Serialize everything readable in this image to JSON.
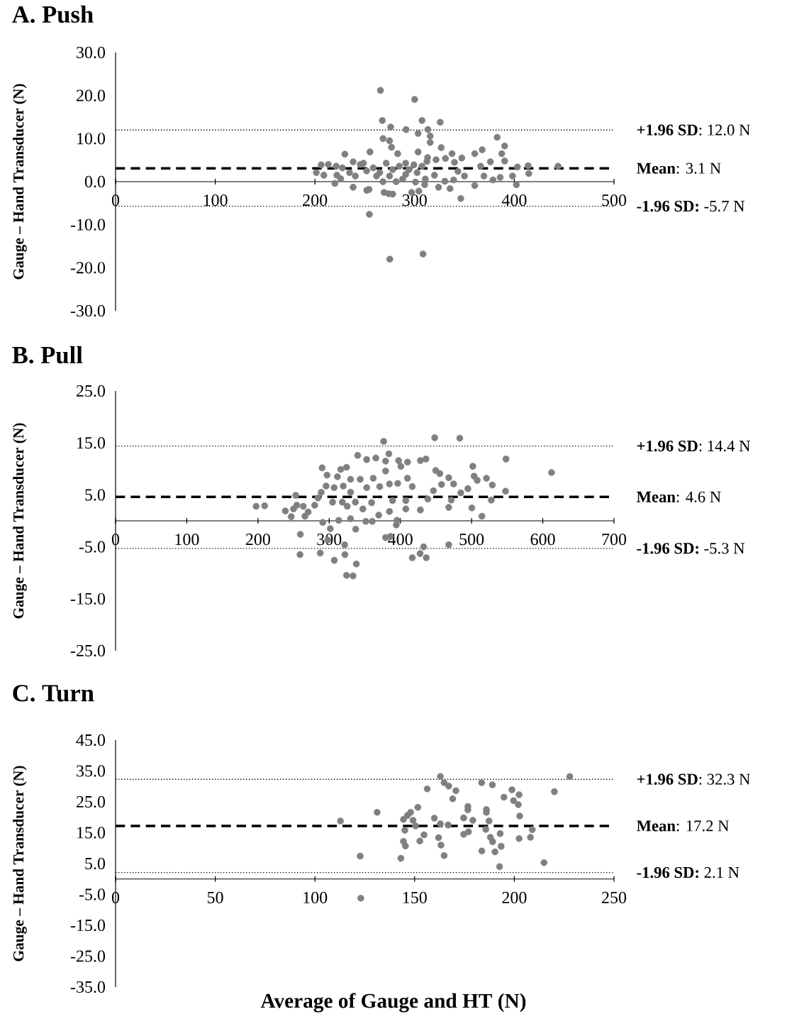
{
  "chart_data": [
    {
      "type": "scatter",
      "title": "**A. Push**",
      "ylabel": "**Gauge – Hand Transducer  (N)**",
      "color": "#808080",
      "marker": "circle",
      "x": [
        265.7,
        300,
        267.6,
        307.4,
        325.7,
        276,
        291.5,
        313.3,
        303.5,
        315.6,
        315.6,
        268.3,
        274.8,
        382.8,
        276.8,
        390.3,
        326.7,
        367.8,
        360.3,
        283,
        303.5,
        230,
        255.2,
        337.5,
        387.4,
        330.9,
        347.3,
        313,
        321.5,
        390.3,
        238.3,
        245.5,
        206.3,
        213.5,
        221.3,
        227.5,
        403.1,
        413.9,
        443.9,
        376,
        366.2,
        340,
        201.4,
        208.9,
        222,
        225.8,
        220,
        238.3,
        234.7,
        240.5,
        254.3,
        252,
        269.3,
        278,
        274,
        297,
        304.2,
        310.1,
        324,
        335.5,
        319.9,
        330.3,
        360.3,
        402.1,
        398.2,
        414.5,
        385.8,
        378.6,
        369.5,
        350,
        343.4,
        339.1,
        346.3,
        254.6,
        275.1,
        308.4,
        258.5,
        265,
        271.5,
        278,
        284.6,
        291,
        294.4,
        299.3,
        302.5,
        288,
        281.5,
        300.9,
        261.8,
        251.9,
        268.3,
        274.8,
        310.7,
        307.4,
        291.1,
        248.7,
        312.3
      ],
      "values": [
        21.2,
        19.1,
        14.2,
        14.2,
        13.8,
        12.7,
        12.1,
        12.1,
        11.2,
        10.6,
        9.1,
        10.0,
        9.5,
        10.3,
        8.0,
        8.3,
        7.9,
        7.4,
        6.5,
        6.5,
        6.9,
        6.4,
        6.9,
        6.5,
        6.5,
        5.4,
        5.5,
        5.6,
        5.1,
        4.8,
        4.6,
        4.0,
        3.9,
        4.0,
        3.6,
        3.2,
        3.4,
        3.7,
        3.6,
        4.6,
        3.6,
        4.5,
        2.1,
        1.5,
        1.5,
        0.7,
        -0.4,
        -1.3,
        2.1,
        1.3,
        -1.8,
        -2.0,
        -2.5,
        -2.9,
        -2.8,
        -2.5,
        -2.2,
        -0.7,
        -1.3,
        -1.6,
        1.5,
        0.1,
        -0.9,
        -0.7,
        1.3,
        1.9,
        1.0,
        0.4,
        1.3,
        1.3,
        2.4,
        0.4,
        -3.9,
        -7.6,
        -18.0,
        -16.8,
        3.2,
        2.1,
        4.3,
        2.8,
        3.6,
        4.3,
        2.8,
        3.9,
        2.1,
        0.6,
        0,
        -0.1,
        1.3,
        2.5,
        0,
        1.3,
        0.6,
        3.6,
        1.7,
        4.3,
        4.7
      ],
      "xlim": [
        0,
        500
      ],
      "xticks": [
        0,
        100,
        200,
        300,
        400,
        500
      ],
      "ylim": [
        -30,
        30
      ],
      "yticks": [
        {
          "value": 30,
          "label": "30.0"
        },
        {
          "value": 20,
          "label": "20.0"
        },
        {
          "value": 10,
          "label": "10.0"
        },
        {
          "value": 0,
          "label": "0.0"
        },
        {
          "value": -10,
          "label": "-10.0"
        },
        {
          "value": -20,
          "label": "-20.0"
        },
        {
          "value": -30,
          "label": "-30.0"
        }
      ],
      "ref_lines": [
        {
          "axis": "y",
          "value": 12.0,
          "label": "**+1.96 SD**: 12.0 N",
          "line_style": "dotted",
          "color": "#000000"
        },
        {
          "axis": "y",
          "value": 3.1,
          "label": "**Mean**: 3.1 N",
          "line_style": "dashed",
          "color": "#000000"
        },
        {
          "axis": "y",
          "value": -5.7,
          "label": "**-1.96 SD:** -5.7 N",
          "line_style": "dotted",
          "color": "#000000"
        }
      ]
    },
    {
      "type": "scatter",
      "title": "**B. Pull**",
      "ylabel": "**Gauge – Hand Transducer  (N)**",
      "color": "#808080",
      "marker": "circle",
      "x": [
        448.2,
        483.4,
        376.5,
        548.3,
        612.3,
        340,
        383.8,
        352.7,
        365.5,
        379.2,
        397.5,
        410,
        428.1,
        435.9,
        400.7,
        501.7,
        290.1,
        324.4,
        316.2,
        449.6,
        455.4,
        379.2,
        297,
        311.6,
        503.5,
        508,
        520.9,
        467.9,
        409.9,
        330,
        343.6,
        361.9,
        474.7,
        529.1,
        457.8,
        416.7,
        295.6,
        319.8,
        494.8,
        384.7,
        396.2,
        352.7,
        371,
        547.7,
        484.8,
        446.4,
        288.8,
        307,
        330,
        253.1,
        284.2,
        527.7,
        471.5,
        438.6,
        407.6,
        389,
        304.8,
        318.5,
        336.8,
        359.6,
        197.4,
        209.3,
        238.5,
        254.5,
        263.6,
        250,
        279.6,
        270.5,
        246.7,
        266,
        467.9,
        500.3,
        514.5,
        347.3,
        369.6,
        384.7,
        407.6,
        428.1,
        325.3,
        313.4,
        330,
        351.4,
        360.5,
        291,
        301.6,
        337.2,
        395.2,
        394.3,
        259.5,
        298,
        379.2,
        386,
        432.7,
        467.9,
        321.7,
        259,
        287.4,
        322.1,
        427.7,
        416.7,
        436.4,
        307.2,
        338.1,
        324.4,
        333.5
      ],
      "values": [
        16.0,
        15.9,
        15.3,
        11.9,
        9.3,
        12.6,
        12.9,
        11.8,
        12.1,
        11.5,
        11.6,
        11.3,
        11.6,
        11.9,
        10.5,
        10.5,
        10.2,
        10.3,
        9.9,
        9.7,
        9.1,
        9.6,
        8.8,
        8.5,
        8.6,
        7.8,
        8.2,
        8.3,
        8.2,
        8.0,
        8.0,
        8.2,
        7.1,
        6.9,
        7.0,
        6.6,
        6.7,
        6.7,
        6.2,
        7.1,
        7.2,
        6.4,
        6.6,
        5.7,
        5.4,
        5.8,
        5.5,
        6.4,
        5.5,
        4.9,
        4.4,
        4.0,
        4.0,
        4.2,
        3.9,
        3.9,
        3.6,
        3.6,
        3.6,
        3.5,
        2.8,
        2.9,
        1.9,
        3.0,
        2.8,
        2.3,
        3.0,
        1.7,
        0.8,
        0.9,
        2.6,
        2.5,
        0.9,
        2.3,
        1.1,
        1.8,
        2.3,
        2.1,
        2.8,
        0.1,
        0.4,
        -0.1,
        -0.1,
        -0.3,
        -1.5,
        -1.6,
        0.1,
        -0.8,
        -2.6,
        -3.7,
        -3.2,
        -3.0,
        -5.0,
        -4.6,
        -4.6,
        -6.5,
        -6.2,
        -6.5,
        -6.3,
        -7.1,
        -7.1,
        -7.6,
        -8.3,
        -10.5,
        -10.6
      ],
      "xlim": [
        0,
        700
      ],
      "xticks": [
        0,
        100,
        200,
        300,
        400,
        500,
        600,
        700
      ],
      "ylim": [
        -25,
        25
      ],
      "yticks": [
        {
          "value": 25,
          "label": "25.0"
        },
        {
          "value": 15,
          "label": "15.0"
        },
        {
          "value": 5,
          "label": "5.0"
        },
        {
          "value": -5,
          "label": "-5.0"
        },
        {
          "value": -15,
          "label": "-15.0"
        },
        {
          "value": -25,
          "label": "-25.0"
        }
      ],
      "ref_lines": [
        {
          "axis": "y",
          "value": 14.4,
          "label": "**+1.96 SD**: 14.4 N",
          "line_style": "dotted",
          "color": "#000000"
        },
        {
          "axis": "y",
          "value": 4.6,
          "label": "**Mean**: 4.6 N",
          "line_style": "dashed",
          "color": "#000000"
        },
        {
          "axis": "y",
          "value": -5.3,
          "label": "**-1.96 SD:** -5.3 N",
          "line_style": "dotted",
          "color": "#000000"
        }
      ]
    },
    {
      "type": "scatter",
      "title": "**C. Turn**",
      "ylabel": "**Gauge – Hand Transducer  (N)**",
      "xlabel": "**Average of Gauge and HT (N)**",
      "color": "#808080",
      "marker": "circle",
      "x": [
        162.9,
        227.8,
        164.8,
        167.1,
        183.6,
        189,
        170.7,
        156.3,
        220.1,
        198.8,
        202.4,
        194.8,
        169.1,
        199.6,
        202,
        151.6,
        131.2,
        176.7,
        176.7,
        186,
        186,
        148,
        146.4,
        202.7,
        174.6,
        159.9,
        144.4,
        149.2,
        179.2,
        187.3,
        112.8,
        162.9,
        166.8,
        150.5,
        185.7,
        209,
        145.1,
        177,
        174.6,
        154.7,
        192.9,
        162,
        208.1,
        202.4,
        188,
        189.1,
        144.4,
        152.6,
        163.2,
        145.4,
        193.4,
        183.7,
        190.3,
        122.7,
        164.8,
        143.1,
        214.9,
        192.6,
        123
      ],
      "values": [
        33.2,
        33.2,
        31.2,
        30.1,
        31.2,
        30.5,
        28.6,
        29.2,
        28.3,
        28.9,
        27.3,
        26.5,
        26.0,
        25.4,
        24.1,
        23.2,
        21.6,
        23.5,
        22.4,
        22.5,
        21.6,
        21.6,
        20.6,
        20.4,
        19.8,
        19.7,
        19.3,
        19.0,
        19.0,
        18.8,
        18.8,
        17.9,
        17.5,
        17.2,
        16.1,
        16.0,
        15.8,
        15.3,
        14.5,
        14.3,
        14.7,
        13.4,
        13.5,
        13.1,
        13.5,
        12.1,
        12.2,
        12.3,
        11.0,
        10.7,
        10.6,
        9.1,
        8.8,
        7.4,
        7.6,
        6.7,
        5.3,
        4.0,
        -6.2
      ],
      "xlim": [
        0,
        250
      ],
      "xticks": [
        0,
        50,
        100,
        150,
        200,
        250
      ],
      "ylim": [
        -35,
        45
      ],
      "yticks": [
        {
          "value": 45,
          "label": "45.0"
        },
        {
          "value": 35,
          "label": "35.0"
        },
        {
          "value": 25,
          "label": "25.0"
        },
        {
          "value": 15,
          "label": "15.0"
        },
        {
          "value": 5,
          "label": "5.0"
        },
        {
          "value": -5,
          "label": "-5.0"
        },
        {
          "value": -15,
          "label": "-15.0"
        },
        {
          "value": -25,
          "label": "-25.0"
        },
        {
          "value": -35,
          "label": "-35.0"
        }
      ],
      "ref_lines": [
        {
          "axis": "y",
          "value": 32.3,
          "label": "**+1.96 SD**: 32.3 N",
          "line_style": "dotted",
          "color": "#000000"
        },
        {
          "axis": "y",
          "value": 17.2,
          "label": "**Mean**: 17.2 N",
          "line_style": "dashed",
          "color": "#000000"
        },
        {
          "axis": "y",
          "value": 2.1,
          "label": "**-1.96 SD:** 2.1 N",
          "line_style": "dotted",
          "color": "#000000"
        }
      ]
    }
  ]
}
